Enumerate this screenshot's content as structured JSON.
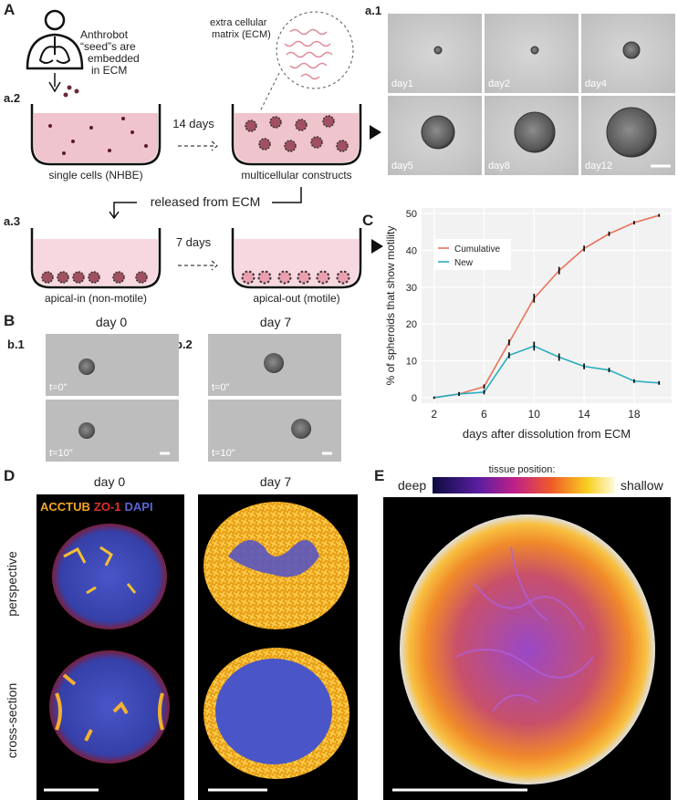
{
  "panel_a": {
    "label": "A",
    "sub1": "a.1",
    "sub2": "a.2",
    "sub3": "a.3",
    "seed_note": [
      "Anthrobot",
      "“seed”s are",
      "embedded",
      "in ECM"
    ],
    "ecm_note": [
      "extra cellular",
      "matrix (ECM)"
    ],
    "step1": "14 days",
    "well1": "single cells (NHBE)",
    "well2": "multicellular constructs",
    "release": "released from ECM",
    "step2": "7 days",
    "well3": "apical-in (non-motile)",
    "well4": "apical-out (motile)",
    "days": [
      "day1",
      "day2",
      "day4",
      "day5",
      "day8",
      "day12"
    ]
  },
  "panel_b": {
    "label": "B",
    "sub1": "b.1",
    "sub2": "b.2",
    "day_left": "day 0",
    "day_right": "day 7",
    "times": [
      "t=0\"",
      "t=10\""
    ]
  },
  "panel_c": {
    "label": "C"
  },
  "chart_data": {
    "type": "line",
    "x": [
      2,
      4,
      6,
      8,
      10,
      12,
      14,
      16,
      18,
      20
    ],
    "series": [
      {
        "name": "Cumulative",
        "color": "#e8735a",
        "values": [
          0,
          1,
          3,
          15,
          27,
          34.5,
          40.5,
          44.5,
          47.5,
          49.5
        ],
        "errors": [
          0.3,
          0.5,
          0.6,
          0.8,
          1.2,
          1,
          0.8,
          0.6,
          0.5,
          0.4
        ]
      },
      {
        "name": "New",
        "color": "#29aebf",
        "values": [
          0,
          1,
          1.5,
          11.5,
          14,
          11,
          8.5,
          7.5,
          4.5,
          4
        ],
        "errors": [
          0.3,
          0.5,
          0.6,
          0.8,
          1.2,
          1,
          0.8,
          0.6,
          0.5,
          0.5
        ]
      }
    ],
    "xlabel": "days after dissolution from ECM",
    "ylabel": "% of spheroids that show motility",
    "xlim": [
      1,
      21
    ],
    "ylim": [
      -1.5,
      51.5
    ],
    "xticks": [
      2,
      6,
      10,
      14,
      18
    ],
    "yticks": [
      0,
      10,
      20,
      30,
      40,
      50
    ],
    "grid": true,
    "legend": "upper left"
  },
  "panel_d": {
    "label": "D",
    "day_left": "day 0",
    "day_right": "day 7",
    "stains": [
      "ACCTUB",
      "ZO-1",
      "DAPI"
    ],
    "stain_colors": [
      "#f5a623",
      "#e0302c",
      "#5a64d8"
    ],
    "views": [
      "perspective",
      "cross-section"
    ]
  },
  "panel_e": {
    "label": "E",
    "colorbar_title": "tissue position:",
    "low": "deep",
    "high": "shallow"
  }
}
